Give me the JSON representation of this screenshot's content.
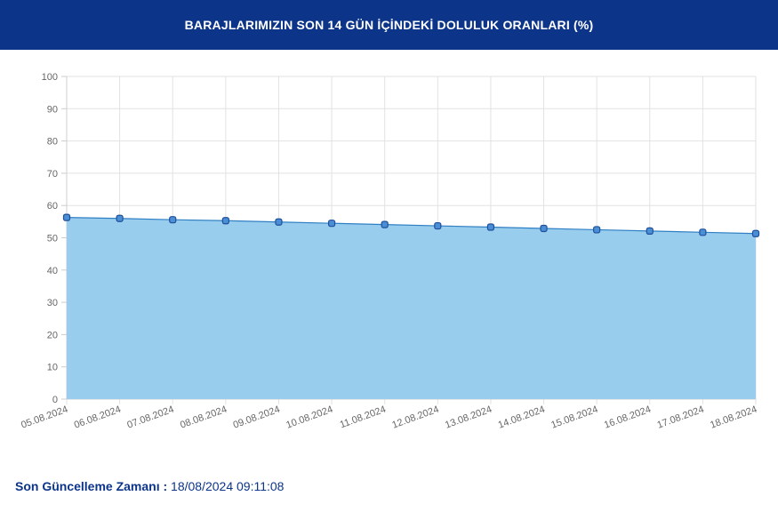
{
  "header": {
    "title": "BARAJLARIMIZIN SON 14 GÜN İÇİNDEKİ DOLULUK ORANLARI (%)"
  },
  "footer": {
    "label": "Son Güncelleme Zamanı :",
    "value": "18/08/2024 09:11:08"
  },
  "colors": {
    "header_bg": "#0c3489",
    "area_fill": "#99cdee",
    "line": "#2f7fc4",
    "marker_fill": "#4a8fd6",
    "marker_stroke": "#1f4f9a",
    "grid": "#e2e2e2"
  },
  "chart_data": {
    "type": "area",
    "x": [
      "05.08.2024",
      "06.08.2024",
      "07.08.2024",
      "08.08.2024",
      "09.08.2024",
      "10.08.2024",
      "11.08.2024",
      "12.08.2024",
      "13.08.2024",
      "14.08.2024",
      "15.08.2024",
      "16.08.2024",
      "17.08.2024",
      "18.08.2024"
    ],
    "values": [
      56.3,
      56.0,
      55.6,
      55.3,
      54.9,
      54.5,
      54.1,
      53.7,
      53.3,
      52.9,
      52.5,
      52.1,
      51.7,
      51.3
    ],
    "yticks": [
      "0",
      "10",
      "20",
      "30",
      "40",
      "50",
      "60",
      "70",
      "80",
      "90",
      "100"
    ],
    "ylim": [
      0,
      100
    ],
    "grid": true,
    "legend": "none"
  }
}
